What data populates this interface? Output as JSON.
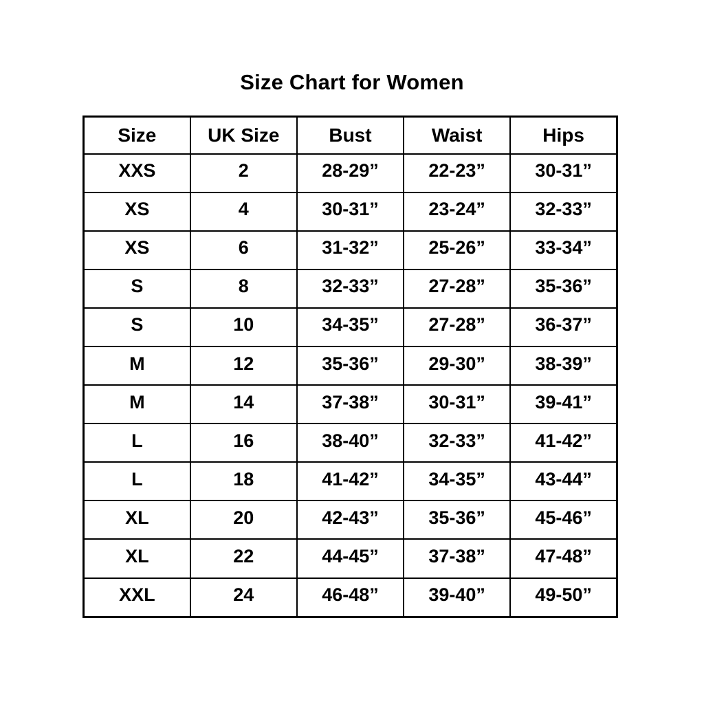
{
  "page": {
    "background": "#ffffff",
    "text_color": "#000000",
    "border_color": "#000000"
  },
  "chart_data": {
    "type": "table",
    "title": "Size Chart for Women",
    "columns": [
      "Size",
      "UK Size",
      "Bust",
      "Waist",
      "Hips"
    ],
    "rows": [
      [
        "XXS",
        "2",
        "28-29”",
        "22-23”",
        "30-31”"
      ],
      [
        "XS",
        "4",
        "30-31”",
        "23-24”",
        "32-33”"
      ],
      [
        "XS",
        "6",
        "31-32”",
        "25-26”",
        "33-34”"
      ],
      [
        "S",
        "8",
        "32-33”",
        "27-28”",
        "35-36”"
      ],
      [
        "S",
        "10",
        "34-35”",
        "27-28”",
        "36-37”"
      ],
      [
        "M",
        "12",
        "35-36”",
        "29-30”",
        "38-39”"
      ],
      [
        "M",
        "14",
        "37-38”",
        "30-31”",
        "39-41”"
      ],
      [
        "L",
        "16",
        "38-40”",
        "32-33”",
        "41-42”"
      ],
      [
        "L",
        "18",
        "41-42”",
        "34-35”",
        "43-44”"
      ],
      [
        "XL",
        "20",
        "42-43”",
        "35-36”",
        "45-46”"
      ],
      [
        "XL",
        "22",
        "44-45”",
        "37-38”",
        "47-48”"
      ],
      [
        "XXL",
        "24",
        "46-48”",
        "39-40”",
        "49-50”"
      ]
    ],
    "layout_hints": {
      "grid": "on",
      "all_text_bold": true,
      "alignment": "center"
    }
  }
}
